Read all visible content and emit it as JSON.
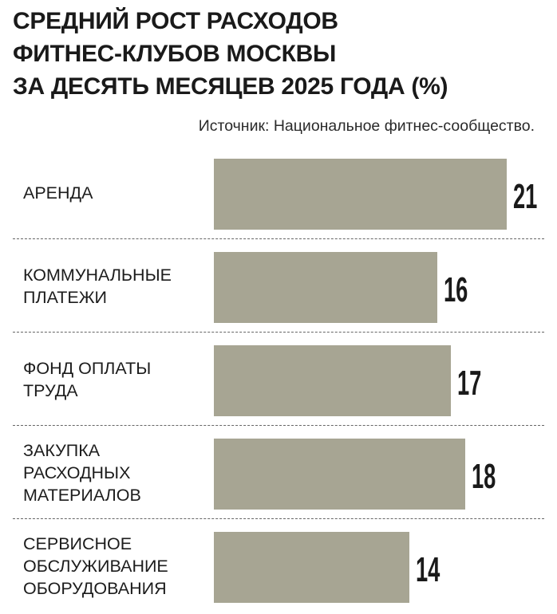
{
  "title_lines": [
    "СРЕДНИЙ РОСТ РАСХОДОВ",
    "ФИТНЕС-КЛУБОВ МОСКВЫ",
    "ЗА ДЕСЯТЬ МЕСЯЦЕВ 2025 ГОДА (%)"
  ],
  "source": "Источник: Национальное фитнес-сообщество.",
  "colors": {
    "bar": "#a7a593",
    "text": "#1a1a1a",
    "divider": "#666666"
  },
  "chart_data": {
    "type": "bar",
    "orientation": "horizontal",
    "title": "СРЕДНИЙ РОСТ РАСХОДОВ ФИТНЕС-КЛУБОВ МОСКВЫ ЗА ДЕСЯТЬ МЕСЯЦЕВ 2025 ГОДА (%)",
    "categories": [
      "АРЕНДА",
      "КОММУНАЛЬНЫЕ\nПЛАТЕЖИ",
      "ФОНД ОПЛАТЫ\nТРУДА",
      "ЗАКУПКА\nРАСХОДНЫХ\nМАТЕРИАЛОВ",
      "СЕРВИСНОЕ\nОБСЛУЖИВАНИЕ\nОБОРУДОВАНИЯ"
    ],
    "values": [
      21,
      16,
      17,
      18,
      14
    ],
    "value_labels": [
      "21",
      "16",
      "17",
      "18",
      "14"
    ],
    "xlim": [
      0,
      21
    ],
    "grid": false,
    "legend": "none"
  }
}
